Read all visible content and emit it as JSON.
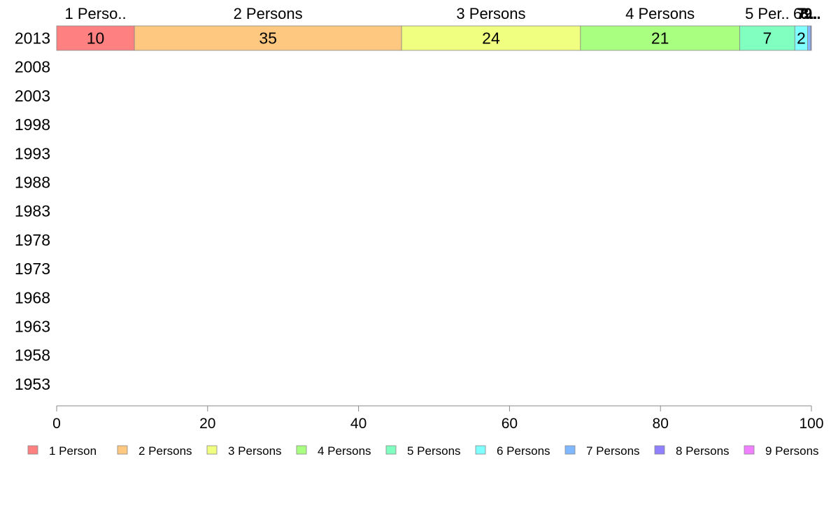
{
  "chart_data": {
    "type": "bar",
    "orientation": "horizontal",
    "stacked": true,
    "title": "",
    "xlabel": "",
    "ylabel": "",
    "xlim": [
      0,
      100
    ],
    "x_ticks": [
      0,
      20,
      40,
      60,
      80,
      100
    ],
    "categories": [
      "2013",
      "2008",
      "2003",
      "1998",
      "1993",
      "1988",
      "1983",
      "1978",
      "1973",
      "1968",
      "1963",
      "1958",
      "1953"
    ],
    "segment_header_labels": [
      "1 Perso..",
      "2 Persons",
      "3 Persons",
      "4 Persons",
      "5 Per..",
      "6..",
      "7..",
      "8..",
      "9.."
    ],
    "series": [
      {
        "name": "1 Person",
        "values": [
          10.3,
          null,
          null,
          null,
          null,
          null,
          null,
          null,
          null,
          null,
          null,
          null,
          null
        ]
      },
      {
        "name": "2 Persons",
        "values": [
          35.4,
          null,
          null,
          null,
          null,
          null,
          null,
          null,
          null,
          null,
          null,
          null,
          null
        ]
      },
      {
        "name": "3 Persons",
        "values": [
          23.7,
          null,
          null,
          null,
          null,
          null,
          null,
          null,
          null,
          null,
          null,
          null,
          null
        ]
      },
      {
        "name": "4 Persons",
        "values": [
          21.1,
          null,
          null,
          null,
          null,
          null,
          null,
          null,
          null,
          null,
          null,
          null,
          null
        ]
      },
      {
        "name": "5 Persons",
        "values": [
          7.3,
          null,
          null,
          null,
          null,
          null,
          null,
          null,
          null,
          null,
          null,
          null,
          null
        ]
      },
      {
        "name": "6 Persons",
        "values": [
          1.7,
          null,
          null,
          null,
          null,
          null,
          null,
          null,
          null,
          null,
          null,
          null,
          null
        ]
      },
      {
        "name": "7 Persons",
        "values": [
          0.4,
          null,
          null,
          null,
          null,
          null,
          null,
          null,
          null,
          null,
          null,
          null,
          null
        ]
      },
      {
        "name": "8 Persons",
        "values": [
          0.1,
          null,
          null,
          null,
          null,
          null,
          null,
          null,
          null,
          null,
          null,
          null,
          null
        ]
      },
      {
        "name": "9 Persons",
        "values": [
          0.0,
          null,
          null,
          null,
          null,
          null,
          null,
          null,
          null,
          null,
          null,
          null,
          null
        ]
      }
    ],
    "data_labels": {
      "2013": [
        "10",
        "35",
        "24",
        "21",
        "7",
        "2",
        "",
        "",
        ""
      ]
    },
    "colors": [
      "#ff8080",
      "#ffc880",
      "#f0ff80",
      "#a8ff80",
      "#80ffc0",
      "#80ffff",
      "#80b8ff",
      "#9080ff",
      "#f080ff"
    ],
    "legend": {
      "position": "bottom",
      "entries": [
        "1 Person",
        "2 Persons",
        "3 Persons",
        "4 Persons",
        "5 Persons",
        "6 Persons",
        "7 Persons",
        "8 Persons",
        "9 Persons"
      ]
    },
    "grid": false
  }
}
